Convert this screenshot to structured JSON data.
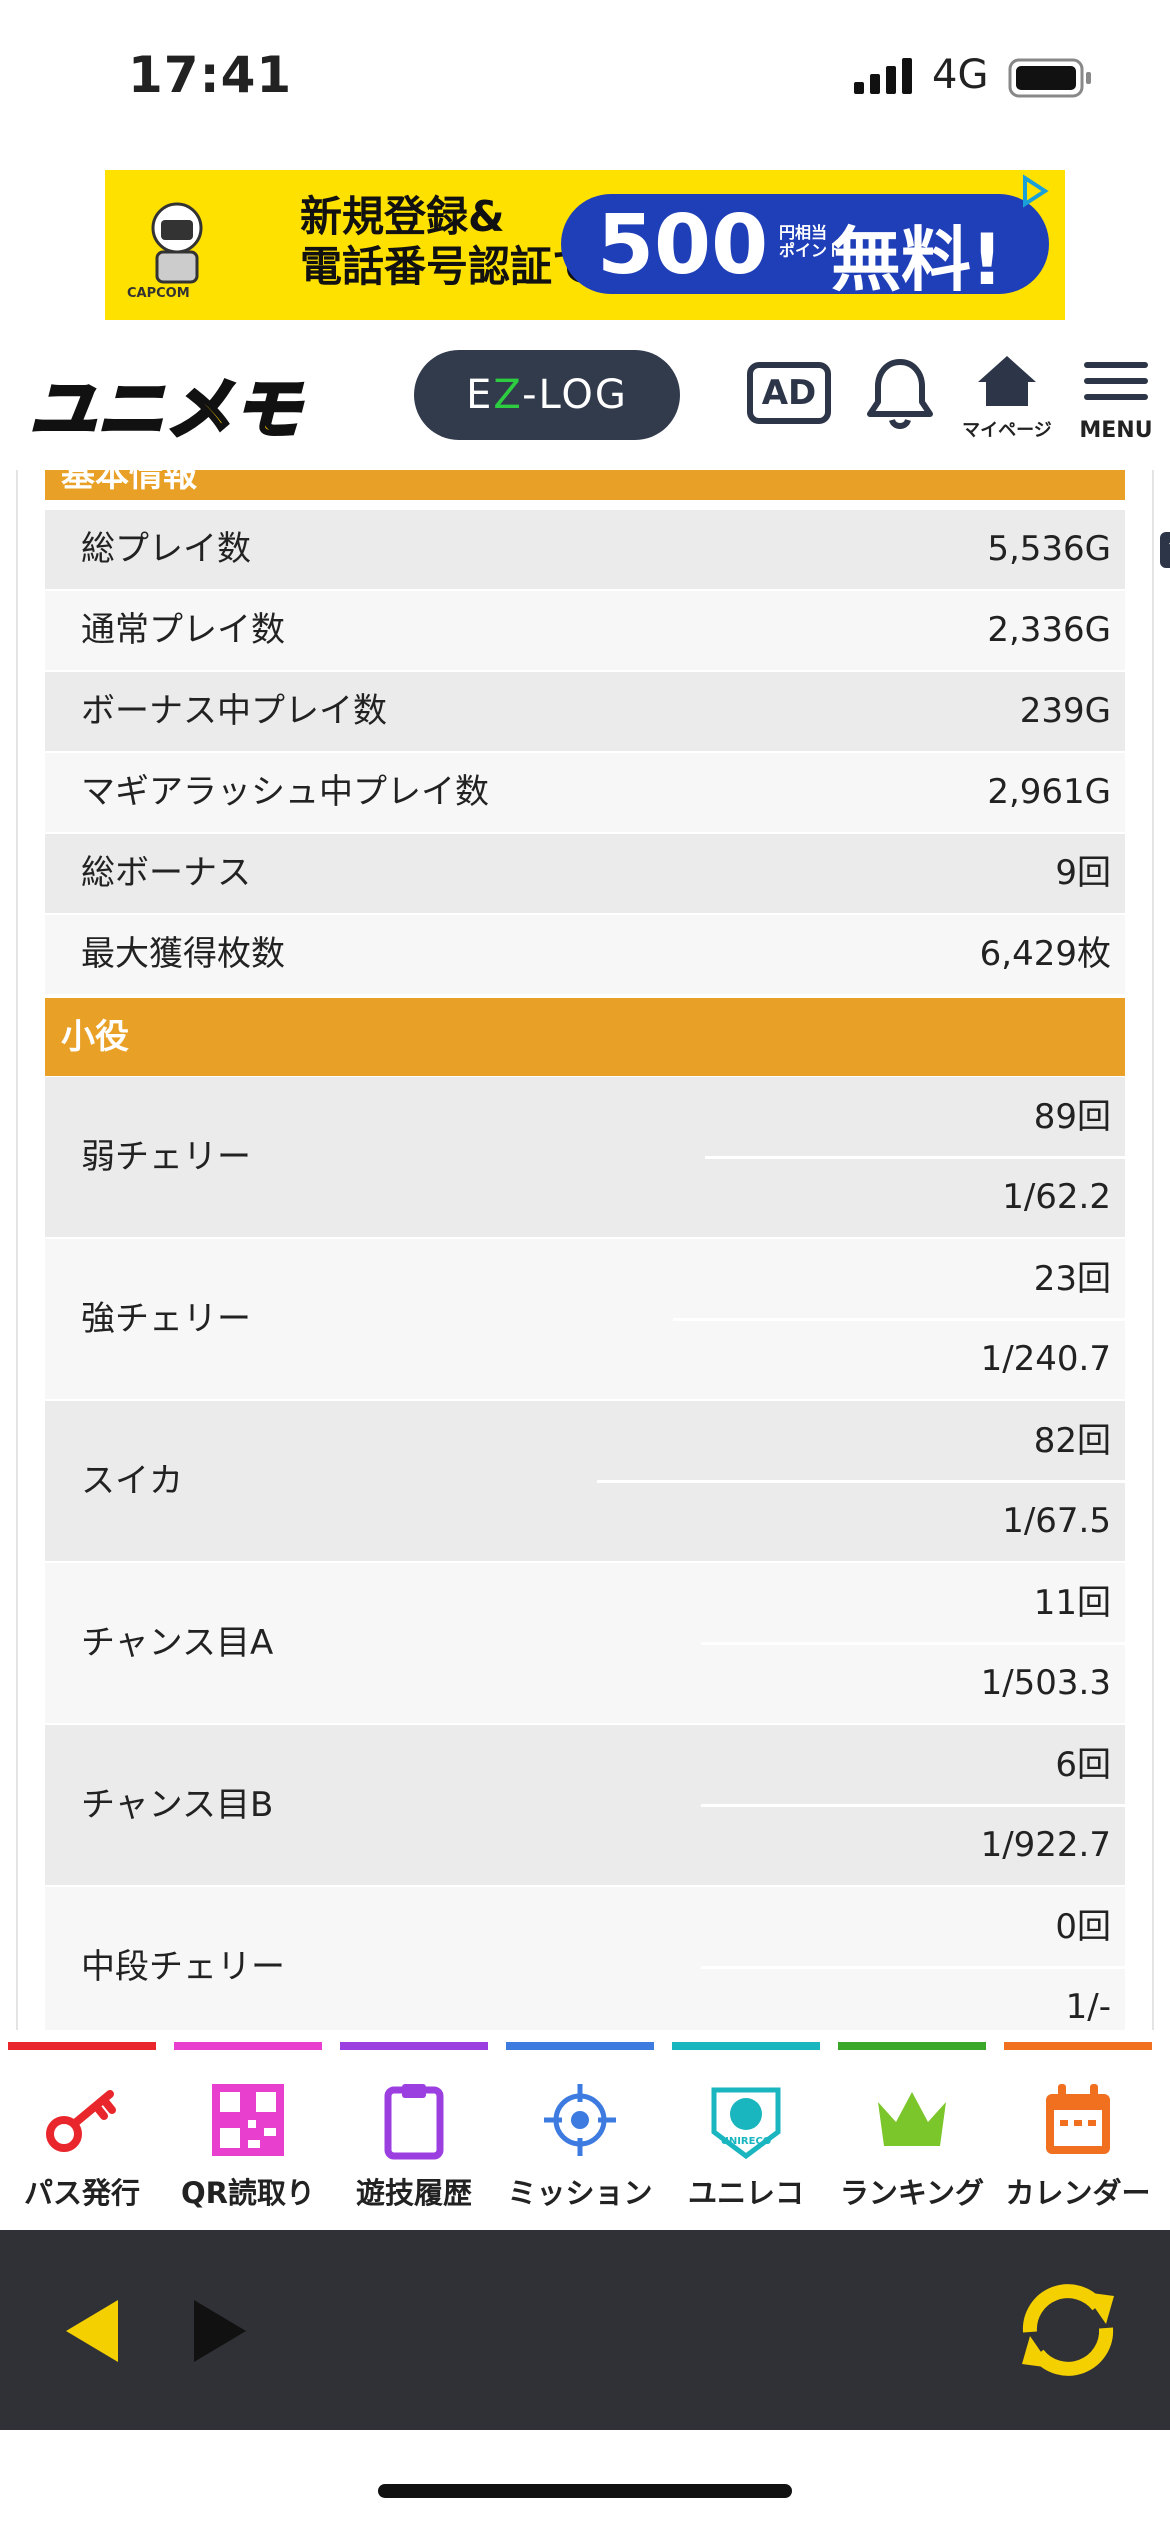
{
  "status_bar": {
    "time": "17:41",
    "network": "4G"
  },
  "ad_banner": {
    "logo_text": "CAPCOM",
    "line1": "新規登録&",
    "line2": "電話番号認証で",
    "amount": "500",
    "unit_line1": "円相当",
    "unit_line2": "ポイント",
    "free": "無料!"
  },
  "header": {
    "logo": "ユニメモ",
    "ezlog_prefix": "E",
    "ezlog_z": "Z",
    "ezlog_suffix": "-LOG",
    "ad_label": "AD",
    "mypage_label": "マイページ",
    "menu_label": "MENU"
  },
  "basic_info": {
    "title": "基本情報",
    "rows": [
      {
        "label": "総プレイ数",
        "value": "5,536G"
      },
      {
        "label": "通常プレイ数",
        "value": "2,336G"
      },
      {
        "label": "ボーナス中プレイ数",
        "value": "239G"
      },
      {
        "label": "マギアラッシュ中プレイ数",
        "value": "2,961G"
      },
      {
        "label": "総ボーナス",
        "value": "9回"
      },
      {
        "label": "最大獲得枚数",
        "value": "6,429枚"
      }
    ]
  },
  "small_roles": {
    "title": "小役",
    "rows": [
      {
        "label": "弱チェリー",
        "count": "89回",
        "prob": "1/62.2"
      },
      {
        "label": "強チェリー",
        "count": "23回",
        "prob": "1/240.7"
      },
      {
        "label": "スイカ",
        "count": "82回",
        "prob": "1/67.5"
      },
      {
        "label": "チャンス目A",
        "count": "11回",
        "prob": "1/503.3"
      },
      {
        "label": "チャンス目B",
        "count": "6回",
        "prob": "1/922.7"
      },
      {
        "label": "中段チェリー",
        "count": "0回",
        "prob": "1/-"
      }
    ]
  },
  "tabs": [
    {
      "label": "パス発行",
      "color": "#e8262b",
      "icon": "key-icon"
    },
    {
      "label": "QR読取り",
      "color": "#e83fcf",
      "icon": "qr-icon"
    },
    {
      "label": "遊技履歴",
      "color": "#9b3fe0",
      "icon": "clipboard-icon"
    },
    {
      "label": "ミッション",
      "color": "#3d7be0",
      "icon": "target-icon"
    },
    {
      "label": "ユニレコ",
      "color": "#19b6c0",
      "icon": "unireco-icon"
    },
    {
      "label": "ランキング",
      "color": "#3aa62a",
      "icon": "crown-icon"
    },
    {
      "label": "カレンダー",
      "color": "#f07020",
      "icon": "calendar-icon"
    }
  ],
  "unireco_icon_text": "UNIRECO",
  "colors": {
    "section": "#e9a026",
    "toolbar": "#2f3136",
    "accent_yellow": "#f5d000"
  }
}
